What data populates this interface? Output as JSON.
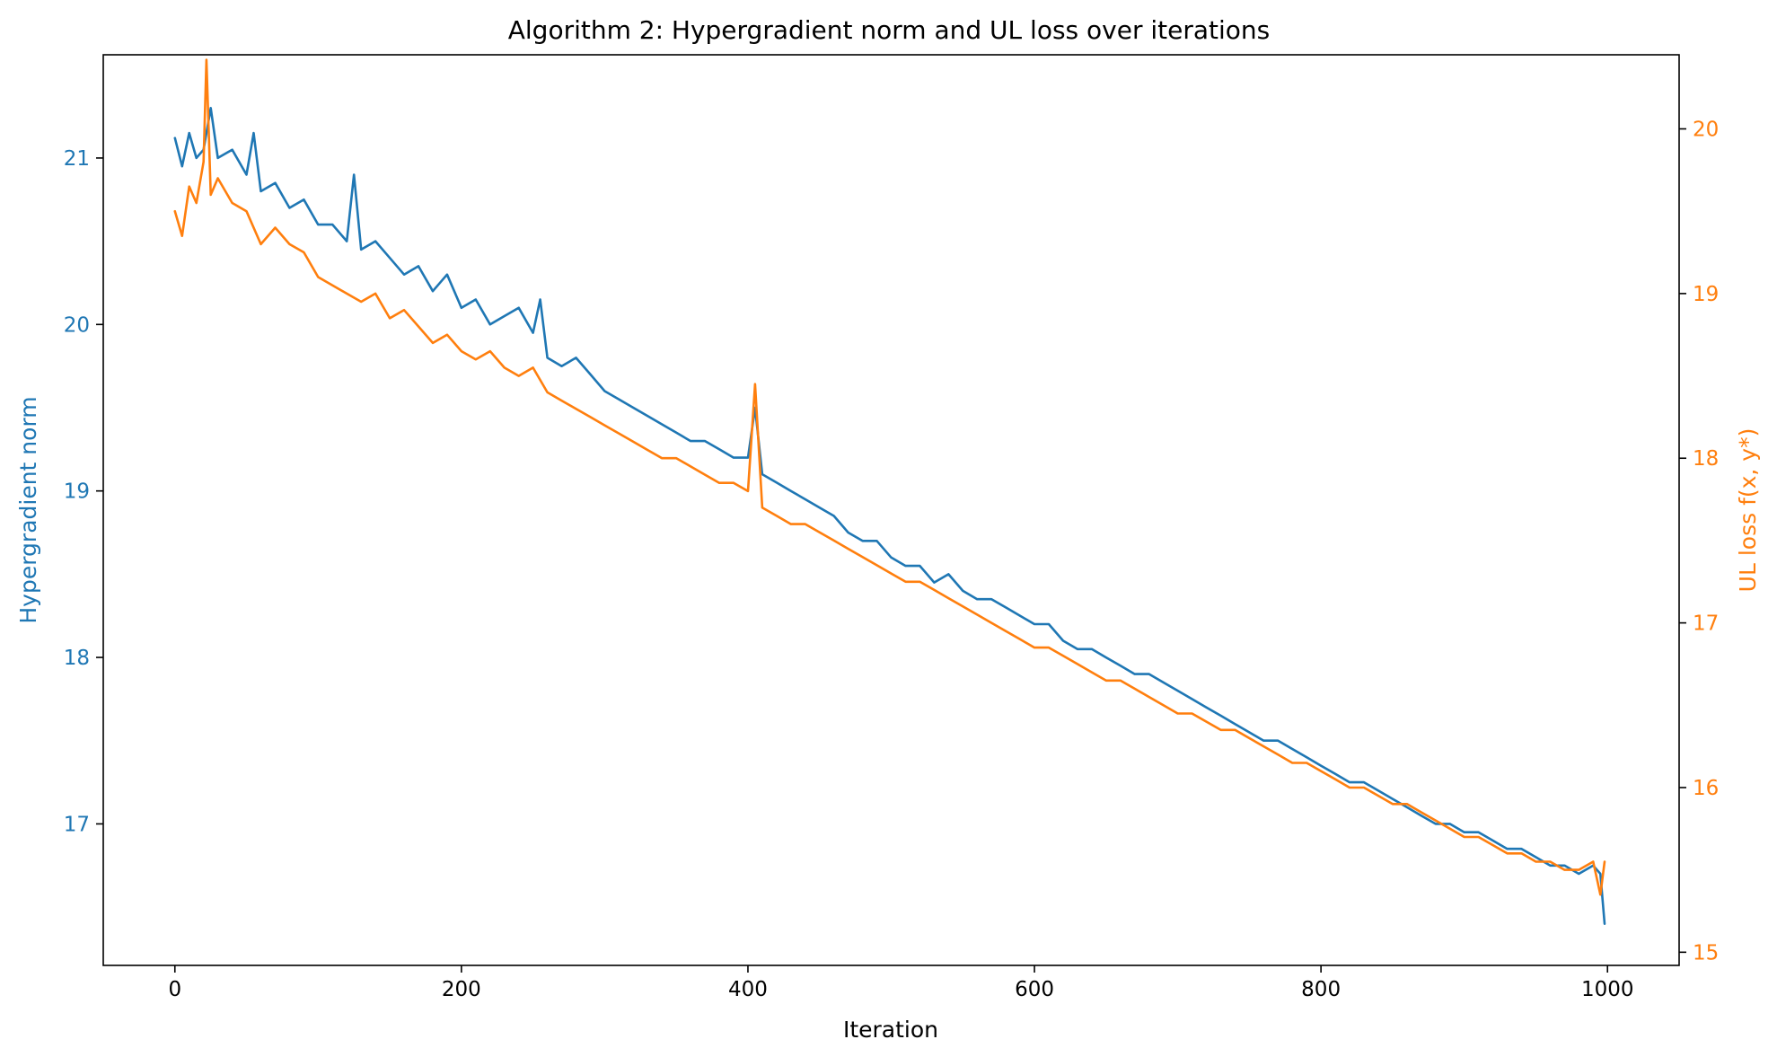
{
  "chart_data": {
    "type": "line",
    "title": "Algorithm 2: Hypergradient norm and UL loss over iterations",
    "xlabel": "Iteration",
    "ylabel_left": "Hypergradient norm",
    "ylabel_right": "UL loss f(x, y*)",
    "x_range": [
      -50,
      1050
    ],
    "x_ticks": [
      0,
      200,
      400,
      600,
      800,
      1000
    ],
    "y_left_range": [
      16.15,
      21.62
    ],
    "y_left_ticks": [
      17,
      18,
      19,
      20,
      21
    ],
    "y_right_range": [
      14.92,
      20.45
    ],
    "y_right_ticks": [
      15,
      16,
      17,
      18,
      19,
      20
    ],
    "grid": false,
    "colors": {
      "hypergradient": "#1f77b4",
      "ul_loss": "#ff7f0e"
    },
    "series": [
      {
        "name": "Hypergradient norm",
        "axis": "left",
        "color": "#1f77b4",
        "x": [
          0,
          5,
          10,
          15,
          20,
          25,
          30,
          40,
          50,
          55,
          60,
          70,
          80,
          90,
          100,
          110,
          120,
          125,
          130,
          140,
          150,
          160,
          170,
          180,
          190,
          200,
          210,
          220,
          230,
          240,
          250,
          255,
          260,
          270,
          280,
          290,
          300,
          310,
          320,
          330,
          340,
          350,
          360,
          370,
          380,
          390,
          400,
          405,
          410,
          420,
          430,
          440,
          450,
          460,
          470,
          480,
          490,
          500,
          510,
          520,
          530,
          540,
          550,
          560,
          570,
          580,
          590,
          600,
          610,
          620,
          630,
          640,
          650,
          660,
          670,
          680,
          690,
          700,
          710,
          720,
          730,
          740,
          750,
          760,
          770,
          780,
          790,
          800,
          810,
          820,
          830,
          840,
          850,
          860,
          870,
          880,
          890,
          900,
          910,
          920,
          930,
          940,
          950,
          960,
          970,
          980,
          990,
          995,
          998
        ],
        "values": [
          21.12,
          20.95,
          21.15,
          21.0,
          21.05,
          21.3,
          21.0,
          21.05,
          20.9,
          21.15,
          20.8,
          20.85,
          20.7,
          20.75,
          20.6,
          20.6,
          20.5,
          20.9,
          20.45,
          20.5,
          20.4,
          20.3,
          20.35,
          20.2,
          20.3,
          20.1,
          20.15,
          20.0,
          20.05,
          20.1,
          19.95,
          20.15,
          19.8,
          19.75,
          19.8,
          19.7,
          19.6,
          19.55,
          19.5,
          19.45,
          19.4,
          19.35,
          19.3,
          19.3,
          19.25,
          19.2,
          19.2,
          19.5,
          19.1,
          19.05,
          19.0,
          18.95,
          18.9,
          18.85,
          18.75,
          18.7,
          18.7,
          18.6,
          18.55,
          18.55,
          18.45,
          18.5,
          18.4,
          18.35,
          18.35,
          18.3,
          18.25,
          18.2,
          18.2,
          18.1,
          18.05,
          18.05,
          18.0,
          17.95,
          17.9,
          17.9,
          17.85,
          17.8,
          17.75,
          17.7,
          17.65,
          17.6,
          17.55,
          17.5,
          17.5,
          17.45,
          17.4,
          17.35,
          17.3,
          17.25,
          17.25,
          17.2,
          17.15,
          17.1,
          17.05,
          17.0,
          17.0,
          16.95,
          16.95,
          16.9,
          16.85,
          16.85,
          16.8,
          16.75,
          16.75,
          16.7,
          16.75,
          16.7,
          16.4
        ]
      },
      {
        "name": "UL loss f(x, y*)",
        "axis": "right",
        "color": "#ff7f0e",
        "x": [
          0,
          5,
          10,
          15,
          20,
          22,
          25,
          30,
          40,
          50,
          60,
          70,
          80,
          90,
          100,
          110,
          120,
          130,
          140,
          150,
          160,
          170,
          180,
          190,
          200,
          210,
          220,
          230,
          240,
          250,
          260,
          270,
          280,
          290,
          300,
          310,
          320,
          330,
          340,
          350,
          360,
          370,
          380,
          390,
          400,
          405,
          410,
          420,
          430,
          440,
          450,
          460,
          470,
          480,
          490,
          500,
          510,
          520,
          530,
          540,
          550,
          560,
          570,
          580,
          590,
          600,
          610,
          620,
          630,
          640,
          650,
          660,
          670,
          680,
          690,
          700,
          710,
          720,
          730,
          740,
          750,
          760,
          770,
          780,
          790,
          800,
          810,
          820,
          830,
          840,
          850,
          860,
          870,
          880,
          890,
          900,
          910,
          920,
          930,
          940,
          950,
          960,
          970,
          980,
          990,
          995,
          998
        ],
        "values": [
          19.5,
          19.35,
          19.65,
          19.55,
          19.8,
          20.42,
          19.6,
          19.7,
          19.55,
          19.5,
          19.3,
          19.4,
          19.3,
          19.25,
          19.1,
          19.05,
          19.0,
          18.95,
          19.0,
          18.85,
          18.9,
          18.8,
          18.7,
          18.75,
          18.65,
          18.6,
          18.65,
          18.55,
          18.5,
          18.55,
          18.4,
          18.35,
          18.3,
          18.25,
          18.2,
          18.15,
          18.1,
          18.05,
          18.0,
          18.0,
          17.95,
          17.9,
          17.85,
          17.85,
          17.8,
          18.45,
          17.7,
          17.65,
          17.6,
          17.6,
          17.55,
          17.5,
          17.45,
          17.4,
          17.35,
          17.3,
          17.25,
          17.25,
          17.2,
          17.15,
          17.1,
          17.05,
          17.0,
          16.95,
          16.9,
          16.85,
          16.85,
          16.8,
          16.75,
          16.7,
          16.65,
          16.65,
          16.6,
          16.55,
          16.5,
          16.45,
          16.45,
          16.4,
          16.35,
          16.35,
          16.3,
          16.25,
          16.2,
          16.15,
          16.15,
          16.1,
          16.05,
          16.0,
          16.0,
          15.95,
          15.9,
          15.9,
          15.85,
          15.8,
          15.75,
          15.7,
          15.7,
          15.65,
          15.6,
          15.6,
          15.55,
          15.55,
          15.5,
          15.5,
          15.55,
          15.35,
          15.55
        ]
      }
    ]
  }
}
